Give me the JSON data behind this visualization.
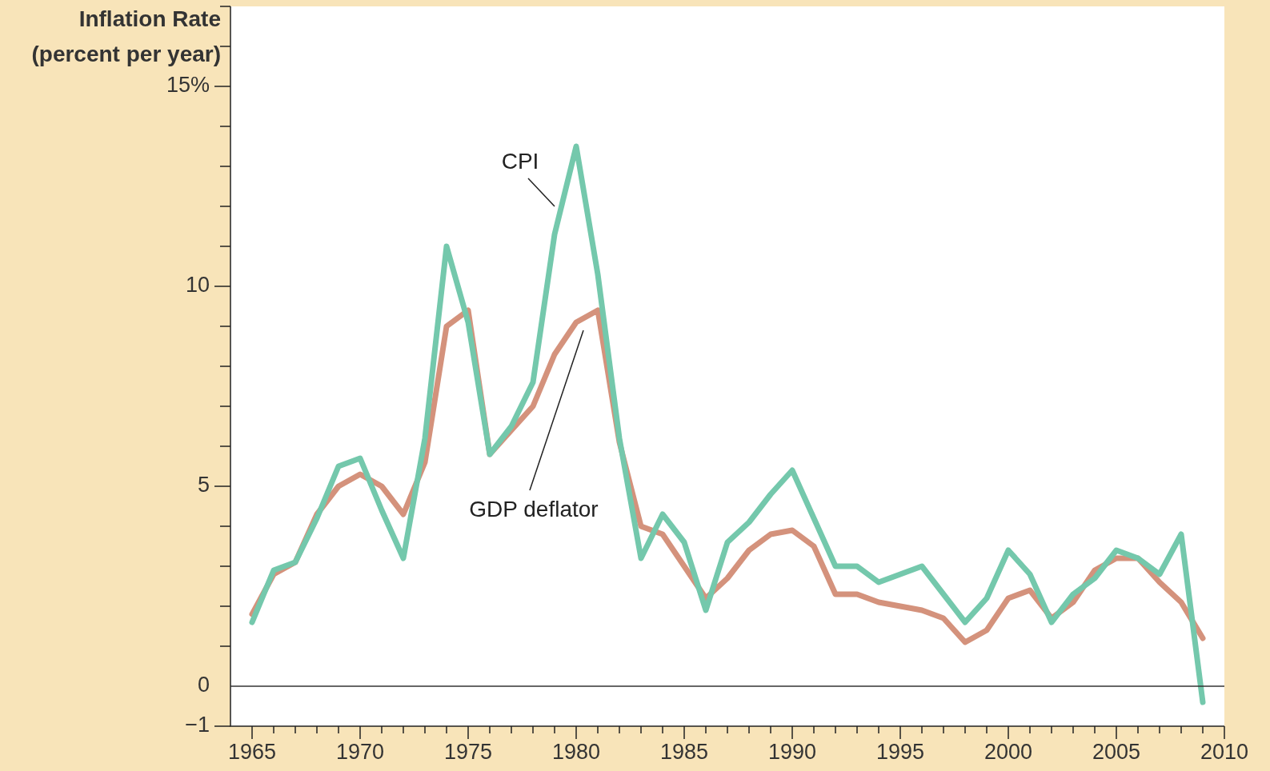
{
  "chart_data": {
    "type": "line",
    "ylabel": "Inflation Rate (percent per year)",
    "x": [
      1965,
      1966,
      1967,
      1968,
      1969,
      1970,
      1971,
      1972,
      1973,
      1974,
      1975,
      1976,
      1977,
      1978,
      1979,
      1980,
      1981,
      1982,
      1983,
      1984,
      1985,
      1986,
      1987,
      1988,
      1989,
      1990,
      1991,
      1992,
      1993,
      1994,
      1995,
      1996,
      1997,
      1998,
      1999,
      2000,
      2001,
      2002,
      2003,
      2004,
      2005,
      2006,
      2007,
      2008,
      2009
    ],
    "series": [
      {
        "name": "CPI",
        "color": "#74c8ac",
        "values": [
          1.6,
          2.9,
          3.1,
          4.2,
          5.5,
          5.7,
          4.4,
          3.2,
          6.2,
          11.0,
          9.1,
          5.8,
          6.5,
          7.6,
          11.3,
          13.5,
          10.3,
          6.2,
          3.2,
          4.3,
          3.6,
          1.9,
          3.6,
          4.1,
          4.8,
          5.4,
          4.2,
          3.0,
          3.0,
          2.6,
          2.8,
          3.0,
          2.3,
          1.6,
          2.2,
          3.4,
          2.8,
          1.6,
          2.3,
          2.7,
          3.4,
          3.2,
          2.8,
          3.8,
          -0.4
        ]
      },
      {
        "name": "GDP deflator",
        "color": "#d4927c",
        "values": [
          1.8,
          2.8,
          3.1,
          4.3,
          5.0,
          5.3,
          5.0,
          4.3,
          5.6,
          9.0,
          9.4,
          5.8,
          6.4,
          7.0,
          8.3,
          9.1,
          9.4,
          6.1,
          4.0,
          3.8,
          3.0,
          2.2,
          2.7,
          3.4,
          3.8,
          3.9,
          3.5,
          2.3,
          2.3,
          2.1,
          2.0,
          1.9,
          1.7,
          1.1,
          1.4,
          2.2,
          2.4,
          1.7,
          2.1,
          2.9,
          3.2,
          3.2,
          2.6,
          2.1,
          1.2
        ]
      }
    ],
    "xlim": [
      1964,
      2010
    ],
    "xticks": [
      1965,
      {
        "value": 1966,
        "label": null
      },
      {
        "value": 1967,
        "label": null
      },
      {
        "value": 1968,
        "label": null
      },
      {
        "value": 1969,
        "label": null
      },
      1970,
      {
        "value": 1971,
        "label": null
      },
      {
        "value": 1972,
        "label": null
      },
      {
        "value": 1973,
        "label": null
      },
      {
        "value": 1974,
        "label": null
      },
      1975,
      {
        "value": 1976,
        "label": null
      },
      {
        "value": 1977,
        "label": null
      },
      {
        "value": 1978,
        "label": null
      },
      {
        "value": 1979,
        "label": null
      },
      1980,
      {
        "value": 1981,
        "label": null
      },
      {
        "value": 1982,
        "label": null
      },
      {
        "value": 1983,
        "label": null
      },
      {
        "value": 1984,
        "label": null
      },
      1985,
      {
        "value": 1986,
        "label": null
      },
      {
        "value": 1987,
        "label": null
      },
      {
        "value": 1988,
        "label": null
      },
      {
        "value": 1989,
        "label": null
      },
      1990,
      {
        "value": 1991,
        "label": null
      },
      {
        "value": 1992,
        "label": null
      },
      {
        "value": 1993,
        "label": null
      },
      {
        "value": 1994,
        "label": null
      },
      1995,
      {
        "value": 1996,
        "label": null
      },
      {
        "value": 1997,
        "label": null
      },
      {
        "value": 1998,
        "label": null
      },
      {
        "value": 1999,
        "label": null
      },
      2000,
      {
        "value": 2001,
        "label": null
      },
      {
        "value": 2002,
        "label": null
      },
      {
        "value": 2003,
        "label": null
      },
      {
        "value": 2004,
        "label": null
      },
      2005,
      {
        "value": 2006,
        "label": null
      },
      {
        "value": 2007,
        "label": null
      },
      {
        "value": 2008,
        "label": null
      },
      {
        "value": 2009,
        "label": null
      },
      2010
    ],
    "ylim": [
      -1,
      17
    ],
    "yticks": [
      {
        "value": -1,
        "label": "−1"
      },
      0,
      {
        "value": 1,
        "label": null
      },
      {
        "value": 2,
        "label": null
      },
      {
        "value": 3,
        "label": null
      },
      {
        "value": 4,
        "label": null
      },
      5,
      {
        "value": 6,
        "label": null
      },
      {
        "value": 7,
        "label": null
      },
      {
        "value": 8,
        "label": null
      },
      {
        "value": 9,
        "label": null
      },
      10,
      {
        "value": 11,
        "label": null
      },
      {
        "value": 12,
        "label": null
      },
      {
        "value": 13,
        "label": null
      },
      {
        "value": 14,
        "label": null
      },
      {
        "value": 15,
        "label": "15%"
      },
      {
        "value": 16,
        "label": null
      },
      {
        "value": 17,
        "label": null
      }
    ],
    "ref_lines": [
      {
        "axis": "y",
        "value": 0,
        "color": "#333333"
      }
    ],
    "legend": false,
    "marker": "none",
    "line_style": "solid"
  }
}
